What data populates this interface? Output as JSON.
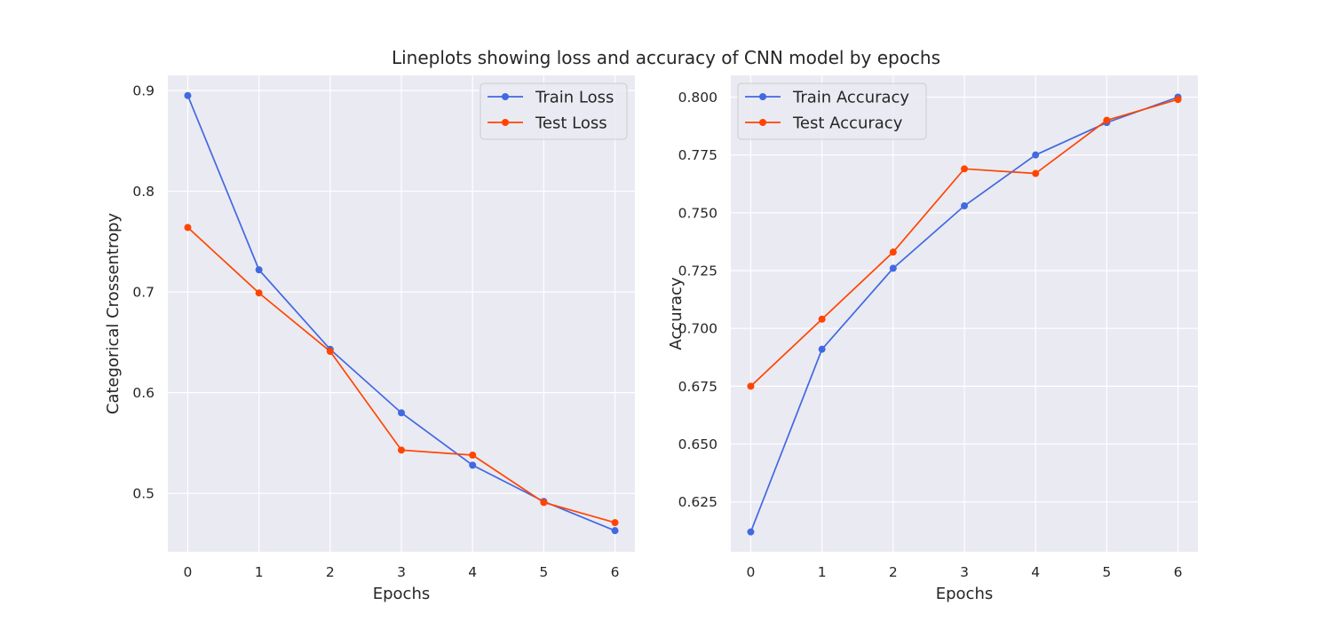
{
  "suptitle": "Lineplots showing loss and accuracy of CNN model by epochs",
  "colors": {
    "train": "#4169e1",
    "test": "#ff4500",
    "background": "#eaeaf2",
    "grid": "#ffffff"
  },
  "chart_data": [
    {
      "type": "line",
      "xlabel": "Epochs",
      "ylabel": "Categorical Crossentropy",
      "x": [
        0,
        1,
        2,
        3,
        4,
        5,
        6
      ],
      "xlim": [
        -0.28,
        6.28
      ],
      "ylim": [
        0.442,
        0.915
      ],
      "yticks": [
        0.5,
        0.6,
        0.7,
        0.8,
        0.9
      ],
      "ytick_labels": [
        "0.5",
        "0.6",
        "0.7",
        "0.8",
        "0.9"
      ],
      "xtick_labels": [
        "0",
        "1",
        "2",
        "3",
        "4",
        "5",
        "6"
      ],
      "grid": true,
      "legend": "top-right",
      "series": [
        {
          "name": "Train Loss",
          "color": "#4169e1",
          "values": [
            0.895,
            0.722,
            0.643,
            0.58,
            0.528,
            0.492,
            0.463
          ]
        },
        {
          "name": "Test Loss",
          "color": "#ff4500",
          "values": [
            0.764,
            0.699,
            0.641,
            0.543,
            0.538,
            0.491,
            0.471
          ]
        }
      ]
    },
    {
      "type": "line",
      "xlabel": "Epochs",
      "ylabel": "Accuracy",
      "x": [
        0,
        1,
        2,
        3,
        4,
        5,
        6
      ],
      "xlim": [
        -0.28,
        6.28
      ],
      "ylim": [
        0.6034,
        0.8094
      ],
      "yticks": [
        0.625,
        0.65,
        0.675,
        0.7,
        0.725,
        0.75,
        0.775,
        0.8
      ],
      "ytick_labels": [
        "0.625",
        "0.650",
        "0.675",
        "0.700",
        "0.725",
        "0.750",
        "0.775",
        "0.800"
      ],
      "xtick_labels": [
        "0",
        "1",
        "2",
        "3",
        "4",
        "5",
        "6"
      ],
      "grid": true,
      "legend": "top-left",
      "series": [
        {
          "name": "Train Accuracy",
          "color": "#4169e1",
          "values": [
            0.612,
            0.691,
            0.726,
            0.753,
            0.775,
            0.789,
            0.8
          ]
        },
        {
          "name": "Test Accuracy",
          "color": "#ff4500",
          "values": [
            0.675,
            0.704,
            0.733,
            0.769,
            0.767,
            0.79,
            0.799
          ]
        }
      ]
    }
  ]
}
